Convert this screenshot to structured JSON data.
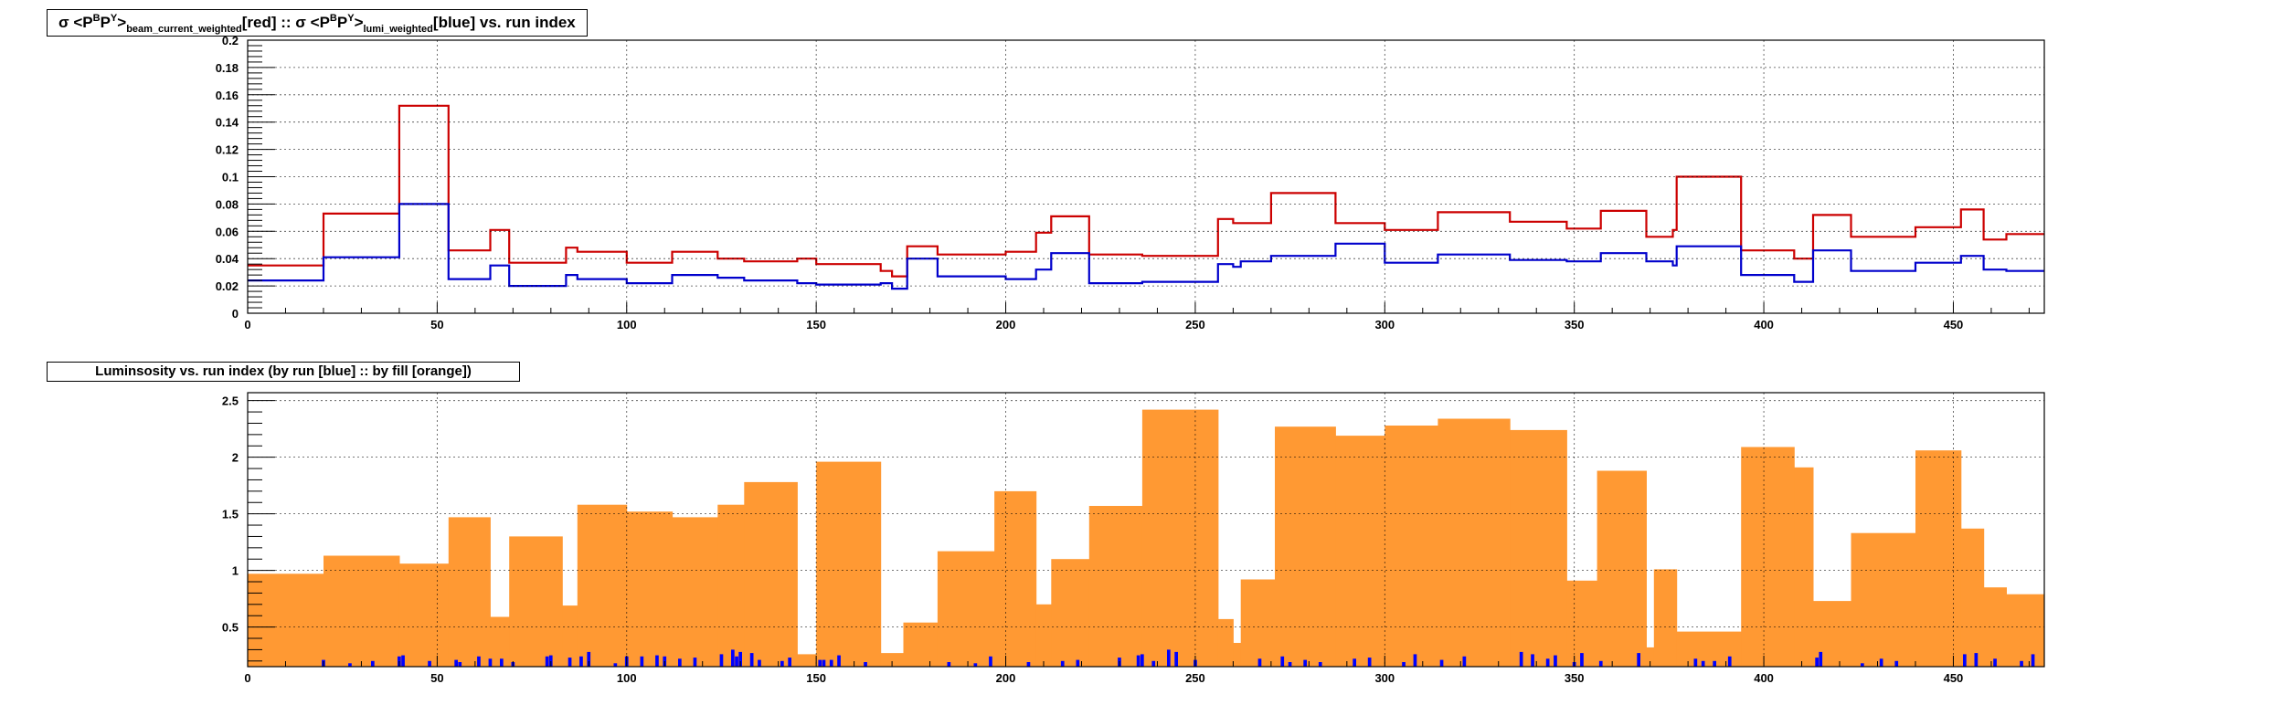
{
  "chart_data": [
    {
      "type": "line",
      "title_parts": [
        "σ <P",
        "B",
        "P",
        "Y",
        ">",
        "beam_current_weighted",
        "[red] :: σ <P",
        "B",
        "P",
        "Y",
        ">",
        "lumi_weighted",
        "[blue] vs. run index"
      ],
      "xlim": [
        0,
        474
      ],
      "ylim": [
        0,
        0.2
      ],
      "x_ticks": [
        0,
        50,
        100,
        150,
        200,
        250,
        300,
        350,
        400,
        450
      ],
      "y_ticks": [
        0,
        0.02,
        0.04,
        0.06,
        0.08,
        0.1,
        0.12,
        0.14,
        0.16,
        0.18,
        0.2
      ],
      "x_tick_labels": [
        "0",
        "50",
        "100",
        "150",
        "200",
        "250",
        "300",
        "350",
        "400",
        "450"
      ],
      "y_tick_labels": [
        "0",
        "0.02",
        "0.04",
        "0.06",
        "0.08",
        "0.1",
        "0.12",
        "0.14",
        "0.16",
        "0.18",
        "0.2"
      ],
      "grid": true,
      "series": [
        {
          "color": "#cc0000",
          "edges": [
            0,
            20,
            40,
            53,
            64,
            69,
            84,
            87,
            100,
            112,
            124,
            131,
            145,
            150,
            167,
            170,
            174,
            182,
            200,
            208,
            212,
            222,
            236,
            256,
            260,
            270,
            287,
            300,
            314,
            333,
            348,
            357,
            369,
            376,
            377,
            394,
            408,
            413,
            423,
            440,
            452,
            458,
            464,
            474
          ],
          "values": [
            0.035,
            0.073,
            0.152,
            0.046,
            0.061,
            0.037,
            0.048,
            0.045,
            0.037,
            0.045,
            0.04,
            0.038,
            0.04,
            0.036,
            0.031,
            0.027,
            0.049,
            0.043,
            0.045,
            0.059,
            0.071,
            0.043,
            0.042,
            0.069,
            0.066,
            0.088,
            0.066,
            0.061,
            0.074,
            0.067,
            0.062,
            0.075,
            0.056,
            0.061,
            0.1,
            0.046,
            0.04,
            0.072,
            0.056,
            0.063,
            0.076,
            0.054,
            0.058
          ]
        },
        {
          "color": "#0000cc",
          "edges": [
            0,
            20,
            40,
            53,
            64,
            69,
            84,
            87,
            100,
            112,
            124,
            131,
            145,
            150,
            167,
            170,
            174,
            182,
            200,
            208,
            212,
            222,
            236,
            256,
            260,
            262,
            270,
            287,
            300,
            314,
            333,
            348,
            357,
            369,
            376,
            377,
            394,
            408,
            413,
            423,
            440,
            452,
            458,
            464,
            474
          ],
          "values": [
            0.024,
            0.041,
            0.08,
            0.025,
            0.035,
            0.02,
            0.028,
            0.025,
            0.022,
            0.028,
            0.026,
            0.024,
            0.022,
            0.021,
            0.022,
            0.018,
            0.04,
            0.027,
            0.025,
            0.032,
            0.044,
            0.022,
            0.023,
            0.036,
            0.034,
            0.038,
            0.042,
            0.051,
            0.037,
            0.043,
            0.039,
            0.038,
            0.044,
            0.038,
            0.035,
            0.049,
            0.028,
            0.023,
            0.046,
            0.031,
            0.037,
            0.042,
            0.032,
            0.031
          ]
        }
      ]
    },
    {
      "type": "bar",
      "title": "Luminsosity vs. run index (by run [blue] :: by fill [orange])",
      "xlim": [
        0,
        474
      ],
      "ylim": [
        0.15,
        2.57
      ],
      "x_ticks": [
        0,
        50,
        100,
        150,
        200,
        250,
        300,
        350,
        400,
        450
      ],
      "y_ticks": [
        0.5,
        1,
        1.5,
        2,
        2.5
      ],
      "x_tick_labels": [
        "0",
        "50",
        "100",
        "150",
        "200",
        "250",
        "300",
        "350",
        "400",
        "450"
      ],
      "y_tick_labels": [
        "0.5",
        "1",
        "1.5",
        "2",
        "2.5"
      ],
      "grid": true,
      "series": [
        {
          "color": "#ff9933",
          "edges": [
            0,
            20,
            40,
            53,
            64,
            69,
            83,
            87,
            100,
            112,
            124,
            131,
            145,
            150,
            167,
            173,
            182,
            197,
            208,
            212,
            222,
            236,
            256,
            260,
            262,
            271,
            287,
            300,
            314,
            333,
            348,
            356,
            369,
            371,
            377,
            394,
            408,
            413,
            423,
            440,
            452,
            458,
            464,
            474
          ],
          "values": [
            0.97,
            1.13,
            1.06,
            1.47,
            0.59,
            1.3,
            0.69,
            1.58,
            1.52,
            1.47,
            1.58,
            1.78,
            0.26,
            1.96,
            0.27,
            0.54,
            1.17,
            1.7,
            0.7,
            1.1,
            1.57,
            2.42,
            0.57,
            0.36,
            0.92,
            2.27,
            2.19,
            2.28,
            2.34,
            2.24,
            0.91,
            1.88,
            0.32,
            1.01,
            0.46,
            2.09,
            1.91,
            0.73,
            1.33,
            2.06,
            1.37,
            0.85,
            0.79,
            1.03
          ]
        },
        {
          "color": "#0000ff",
          "x": [
            20,
            27,
            33,
            40,
            41,
            48,
            55,
            56,
            61,
            64,
            67,
            70,
            79,
            80,
            85,
            88,
            90,
            97,
            100,
            104,
            108,
            110,
            114,
            118,
            125,
            128,
            129,
            130,
            133,
            135,
            141,
            143,
            151,
            152,
            154,
            156,
            163,
            185,
            192,
            196,
            206,
            215,
            219,
            230,
            235,
            236,
            239,
            243,
            245,
            250,
            267,
            273,
            275,
            279,
            283,
            292,
            296,
            305,
            308,
            315,
            321,
            336,
            339,
            343,
            345,
            350,
            352,
            357,
            367,
            382,
            384,
            387,
            391,
            414,
            415,
            426,
            431,
            435,
            453,
            456,
            461,
            468,
            471
          ],
          "values": [
            0.21,
            0.18,
            0.2,
            0.24,
            0.25,
            0.2,
            0.21,
            0.19,
            0.24,
            0.22,
            0.22,
            0.19,
            0.24,
            0.25,
            0.23,
            0.24,
            0.28,
            0.18,
            0.24,
            0.24,
            0.25,
            0.24,
            0.22,
            0.23,
            0.26,
            0.3,
            0.24,
            0.28,
            0.27,
            0.21,
            0.2,
            0.23,
            0.21,
            0.21,
            0.21,
            0.25,
            0.19,
            0.19,
            0.18,
            0.24,
            0.19,
            0.2,
            0.21,
            0.23,
            0.25,
            0.26,
            0.2,
            0.3,
            0.28,
            0.21,
            0.22,
            0.24,
            0.19,
            0.21,
            0.19,
            0.22,
            0.23,
            0.19,
            0.26,
            0.21,
            0.24,
            0.28,
            0.26,
            0.22,
            0.25,
            0.19,
            0.27,
            0.2,
            0.27,
            0.22,
            0.2,
            0.2,
            0.24,
            0.23,
            0.28,
            0.18,
            0.22,
            0.2,
            0.26,
            0.27,
            0.22,
            0.2,
            0.26
          ]
        }
      ]
    }
  ]
}
